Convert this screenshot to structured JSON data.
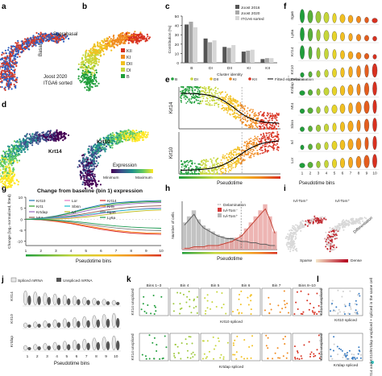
{
  "panel_labels": [
    "a",
    "b",
    "c",
    "d",
    "e",
    "f",
    "g",
    "h",
    "i",
    "j",
    "k",
    "l"
  ],
  "panel_a": {
    "labels": [
      "Suprabasal",
      "Basal",
      "Joost 2020",
      "ITGA6 sorted"
    ]
  },
  "panel_b": {
    "legend": [
      "KII",
      "KI",
      "DII",
      "DI",
      "B"
    ]
  },
  "panel_d": {
    "gene": "Krt14"
  },
  "panel_d2": {
    "gene": "Krt10",
    "colorbar_title": "Expression",
    "colorbar_min": "Minimum",
    "colorbar_max": "Maximum"
  },
  "panel_f": {
    "xlabel": "Pseudotime bins"
  },
  "panel_g": {
    "title": "Change from baseline (bin 1) expression",
    "xlabel": "Pseudotime bins"
  },
  "panel_h": {
    "ylabel": "Number of cells",
    "xlabel": "Pseudotime"
  },
  "panel_i": {
    "labels": [
      "Ivl-Tom⁺",
      "Ivl-Tom⁺",
      "Differentiation",
      "Sparse",
      "Dense"
    ]
  },
  "panel_j": {
    "legend": [
      "Spliced mRNA",
      "Unspliced mRNA"
    ],
    "xlabel": "Pseudotime bins",
    "genes": [
      "Krt14",
      "Krt10",
      "Krtdap"
    ]
  },
  "panel_k": {
    "bins": [
      "Bins 1–3",
      "Bin 4",
      "Bin 5",
      "Bin 6",
      "Bin 7",
      "Bins 8–10"
    ],
    "row1_ylabel": "Krt14 unspliced",
    "row1_xlabel": "Krt10 spliced",
    "row2_ylabel": "Krt14 unspliced",
    "row2_xlabel": "Krtdap spliced"
  },
  "panel_l": {
    "ylabel1": "Krt14 unspliced",
    "xlabel1": "Krt10 spliced",
    "ylabel2": "Krt14 unspliced",
    "xlabel2": "Krtdap spliced",
    "side": "Krt14 and Krt10/Krtdap unspliced + spliced in the same cell"
  },
  "colors": {
    "B": "#1f9e3a",
    "DI": "#c6d63a",
    "DII": "#f2c020",
    "KI": "#f08a1e",
    "KII": "#d8301f",
    "spliced": "#e8e8e8",
    "unspliced": "#555555",
    "delam": "#9a9a9a",
    "ivl_neg": "#e9a3a0",
    "ivl_pos": "#d93a3a"
  },
  "chart_data": [
    {
      "panel": "c",
      "type": "bar",
      "title": "",
      "ylabel": "Contribution (%)",
      "xlabel": "Cluster identity",
      "categories": [
        "B",
        "DI",
        "DII",
        "KI",
        "KII"
      ],
      "ylim": [
        0,
        50
      ],
      "yticks": [
        0,
        10,
        20,
        30,
        40,
        50
      ],
      "series": [
        {
          "name": "Joost 2016",
          "values": [
            41,
            26,
            17,
            12,
            4
          ]
        },
        {
          "name": "Joost 2020",
          "values": [
            44,
            22,
            16,
            13,
            5
          ]
        },
        {
          "name": "ITGA6 sorted",
          "values": [
            38,
            24,
            19,
            14,
            5
          ]
        }
      ]
    },
    {
      "panel": "e",
      "type": "scatter",
      "ylabels": [
        "Krt14",
        "Krt10"
      ],
      "xlabel": "Pseudotime",
      "legend": [
        "B",
        "DI",
        "DII",
        "KI",
        "KII",
        "Fitted expression",
        "Delamination"
      ]
    },
    {
      "panel": "g",
      "type": "line",
      "xlabel": "Pseudotime bins",
      "ylabel": "Change (log₂-normalized, fitted)",
      "x": [
        1,
        2,
        3,
        4,
        5,
        6,
        7,
        8,
        9,
        10
      ],
      "ylim": [
        -12,
        10
      ],
      "yticks": [
        -10,
        -5,
        0,
        5,
        10
      ],
      "series": [
        {
          "name": "Krt10",
          "values": [
            0,
            0.5,
            1.5,
            3,
            5,
            6.5,
            7.5,
            8,
            8.3,
            8.5
          ]
        },
        {
          "name": "Krt1",
          "values": [
            0,
            0.4,
            1.3,
            2.8,
            4.6,
            6,
            7,
            7.6,
            7.9,
            8.1
          ]
        },
        {
          "name": "Krtdap",
          "values": [
            0,
            0.3,
            1,
            2.2,
            3.8,
            5.2,
            6.3,
            7,
            7.4,
            7.6
          ]
        },
        {
          "name": "Mt4",
          "values": [
            0,
            0.2,
            0.7,
            1.5,
            2.6,
            3.8,
            4.8,
            5.5,
            5.9,
            6.1
          ]
        },
        {
          "name": "Lor",
          "values": [
            0,
            0.1,
            0.3,
            0.8,
            1.6,
            2.6,
            3.6,
            4.4,
            4.9,
            5.2
          ]
        },
        {
          "name": "Sbsn",
          "values": [
            0,
            0.2,
            0.6,
            1.2,
            2,
            2.9,
            3.7,
            4.3,
            4.6,
            4.8
          ]
        },
        {
          "name": "Ivl",
          "values": [
            0,
            0,
            0.1,
            0.4,
            1,
            1.8,
            2.7,
            3.4,
            3.9,
            4.2
          ]
        },
        {
          "name": "Krt14",
          "values": [
            0,
            -0.3,
            -1,
            -2,
            -3.3,
            -4.6,
            -5.6,
            -6.3,
            -6.7,
            -6.9
          ]
        },
        {
          "name": "Krt5",
          "values": [
            0,
            -0.2,
            -0.8,
            -1.7,
            -2.9,
            -4.1,
            -5.1,
            -5.8,
            -6.2,
            -6.4
          ]
        },
        {
          "name": "Itga6",
          "values": [
            0,
            -0.2,
            -0.6,
            -1.3,
            -2.2,
            -3.2,
            -4,
            -4.6,
            -5,
            -5.2
          ]
        },
        {
          "name": "Ly6a",
          "values": [
            0,
            -0.1,
            -0.4,
            -0.9,
            -1.6,
            -2.4,
            -3.1,
            -3.6,
            -3.9,
            -4.1
          ]
        }
      ]
    },
    {
      "panel": "h",
      "type": "bar",
      "ylabel": "Number of cells",
      "xlabel": "Pseudotime",
      "series": [
        {
          "name": "Delamination",
          "values": []
        },
        {
          "name": "Ivl-Tom⁻",
          "values": [
            18,
            22,
            26,
            20,
            16,
            14,
            12,
            10,
            9,
            8,
            8,
            7,
            6,
            6,
            5,
            5,
            4,
            4,
            3,
            3
          ]
        },
        {
          "name": "Ivl-Tom⁺",
          "values": [
            1,
            1,
            2,
            2,
            2,
            3,
            3,
            3,
            4,
            5,
            6,
            8,
            10,
            14,
            18,
            22,
            26,
            30,
            22,
            12
          ]
        }
      ]
    }
  ]
}
